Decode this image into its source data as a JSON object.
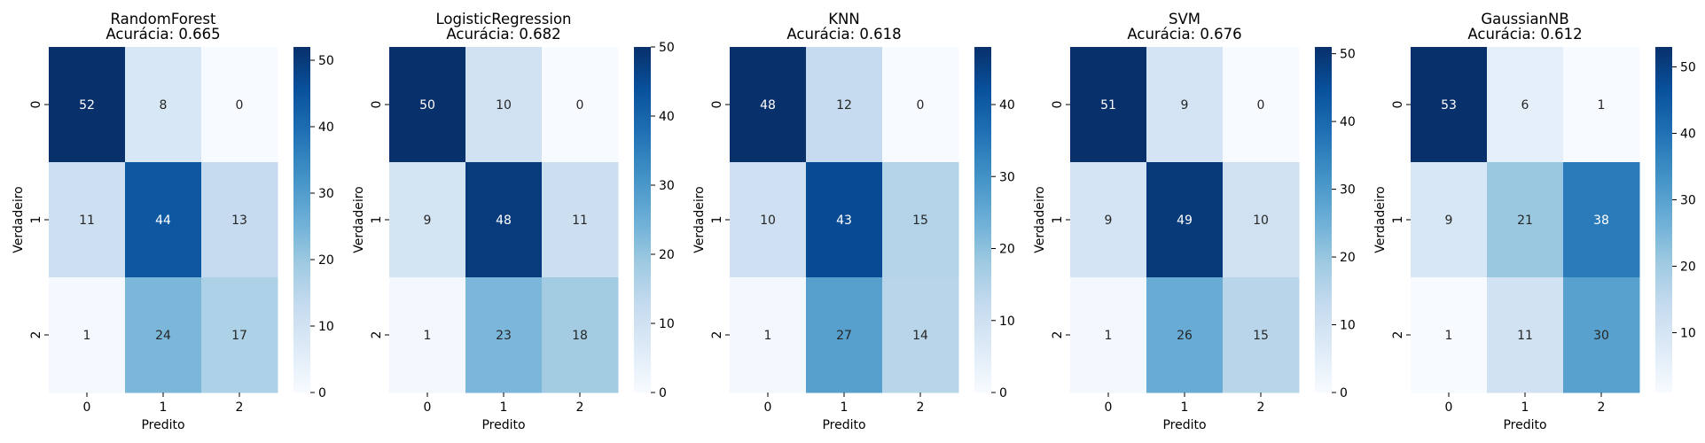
{
  "chart_data": [
    {
      "type": "heatmap",
      "title": "RandomForest",
      "subtitle": "Acurácia: 0.665",
      "xlabel": "Predito",
      "ylabel": "Verdadeiro",
      "x_categories": [
        "0",
        "1",
        "2"
      ],
      "y_categories": [
        "0",
        "1",
        "2"
      ],
      "matrix": [
        [
          52,
          8,
          0
        ],
        [
          11,
          44,
          13
        ],
        [
          1,
          24,
          17
        ]
      ],
      "colormap": "Blues",
      "colorbar": {
        "min": 0,
        "max": 52,
        "ticks": [
          0,
          10,
          20,
          30,
          40,
          50
        ]
      }
    },
    {
      "type": "heatmap",
      "title": "LogisticRegression",
      "subtitle": "Acurácia: 0.682",
      "xlabel": "Predito",
      "ylabel": "Verdadeiro",
      "x_categories": [
        "0",
        "1",
        "2"
      ],
      "y_categories": [
        "0",
        "1",
        "2"
      ],
      "matrix": [
        [
          50,
          10,
          0
        ],
        [
          9,
          48,
          11
        ],
        [
          1,
          23,
          18
        ]
      ],
      "colormap": "Blues",
      "colorbar": {
        "min": 0,
        "max": 50,
        "ticks": [
          0,
          10,
          20,
          30,
          40,
          50
        ]
      }
    },
    {
      "type": "heatmap",
      "title": "KNN",
      "subtitle": "Acurácia: 0.618",
      "xlabel": "Predito",
      "ylabel": "Verdadeiro",
      "x_categories": [
        "0",
        "1",
        "2"
      ],
      "y_categories": [
        "0",
        "1",
        "2"
      ],
      "matrix": [
        [
          48,
          12,
          0
        ],
        [
          10,
          43,
          15
        ],
        [
          1,
          27,
          14
        ]
      ],
      "colormap": "Blues",
      "colorbar": {
        "min": 0,
        "max": 48,
        "ticks": [
          0,
          10,
          20,
          30,
          40
        ]
      }
    },
    {
      "type": "heatmap",
      "title": "SVM",
      "subtitle": "Acurácia: 0.676",
      "xlabel": "Predito",
      "ylabel": "Verdadeiro",
      "x_categories": [
        "0",
        "1",
        "2"
      ],
      "y_categories": [
        "0",
        "1",
        "2"
      ],
      "matrix": [
        [
          51,
          9,
          0
        ],
        [
          9,
          49,
          10
        ],
        [
          1,
          26,
          15
        ]
      ],
      "colormap": "Blues",
      "colorbar": {
        "min": 0,
        "max": 51,
        "ticks": [
          0,
          10,
          20,
          30,
          40,
          50
        ]
      }
    },
    {
      "type": "heatmap",
      "title": "GaussianNB",
      "subtitle": "Acurácia: 0.612",
      "xlabel": "Predito",
      "ylabel": "Verdadeiro",
      "x_categories": [
        "0",
        "1",
        "2"
      ],
      "y_categories": [
        "0",
        "1",
        "2"
      ],
      "matrix": [
        [
          53,
          6,
          1
        ],
        [
          9,
          21,
          38
        ],
        [
          1,
          11,
          30
        ]
      ],
      "colormap": "Blues",
      "colorbar": {
        "min": 1,
        "max": 53,
        "ticks": [
          10,
          20,
          30,
          40,
          50
        ]
      }
    }
  ]
}
